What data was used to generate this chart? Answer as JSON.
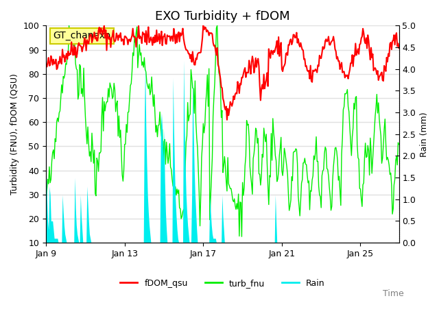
{
  "title": "EXO Turbidity + fDOM",
  "xlabel": "Time",
  "ylabel_left": "Turbidity (FNU), fDOM (QSU)",
  "ylabel_right": "Rain (mm)",
  "annotation": "GT_chanexo",
  "ylim_left": [
    10,
    100
  ],
  "ylim_right": [
    0.0,
    5.0
  ],
  "yticks_left": [
    10,
    20,
    30,
    40,
    50,
    60,
    70,
    80,
    90,
    100
  ],
  "yticks_right": [
    0.0,
    0.5,
    1.0,
    1.5,
    2.0,
    2.5,
    3.0,
    3.5,
    4.0,
    4.5,
    5.0
  ],
  "xtick_labels": [
    "Jan 9",
    "Jan 13",
    "Jan 17",
    "Jan 21",
    "Jan 25"
  ],
  "xtick_positions": [
    0,
    96,
    192,
    288,
    384
  ],
  "total_points": 432,
  "fDOM_color": "#ff0000",
  "turb_color": "#00ee00",
  "rain_color": "#00eeee",
  "background_color": "#ffffff",
  "grid_color": "#e0e0e0",
  "annotation_bg": "#ffff99",
  "annotation_border": "#cccc00",
  "legend_items": [
    "fDOM_qsu",
    "turb_fnu",
    "Rain"
  ],
  "title_fontsize": 13,
  "axis_label_fontsize": 9,
  "tick_fontsize": 9,
  "legend_fontsize": 9
}
